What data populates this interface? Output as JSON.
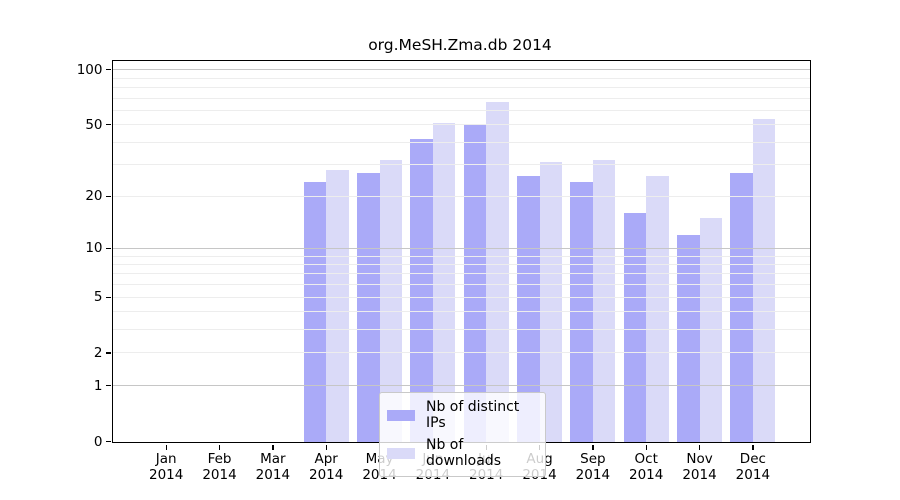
{
  "title": "org.MeSH.Zma.db 2014",
  "chart_data": {
    "type": "bar",
    "title": "org.MeSH.Zma.db 2014",
    "categories": [
      "Jan 2014",
      "Feb 2014",
      "Mar 2014",
      "Apr 2014",
      "May 2014",
      "Jun 2014",
      "Jul 2014",
      "Aug 2014",
      "Sep 2014",
      "Oct 2014",
      "Nov 2014",
      "Dec 2014"
    ],
    "series": [
      {
        "name": "Nb of distinct IPs",
        "color": "#aaaaf8",
        "values": [
          0,
          0,
          0,
          24,
          27,
          42,
          50,
          26,
          24,
          16,
          12,
          27
        ]
      },
      {
        "name": "Nb of downloads",
        "color": "#dadaf8",
        "values": [
          0,
          0,
          0,
          28,
          32,
          51,
          67,
          31,
          32,
          26,
          15,
          54
        ]
      }
    ],
    "xlabel": "",
    "ylabel": "",
    "ylim": [
      0,
      100
    ],
    "yscale": "log1p",
    "yticks": [
      0,
      1,
      2,
      5,
      10,
      20,
      50,
      100
    ],
    "major_gridlines": [
      1,
      10,
      100
    ],
    "minor_gridlines": [
      2,
      3,
      4,
      5,
      6,
      7,
      8,
      9,
      20,
      30,
      40,
      50,
      60,
      70,
      80,
      90
    ],
    "grid": true,
    "legend_position": "bottom-center"
  },
  "colors": {
    "bar_dark": "#aaaaf8",
    "bar_light": "#dadaf8",
    "major_grid": "#c6c6c6",
    "minor_grid": "#ededed",
    "axis": "#000000",
    "legend_border": "#c9c9c9"
  }
}
